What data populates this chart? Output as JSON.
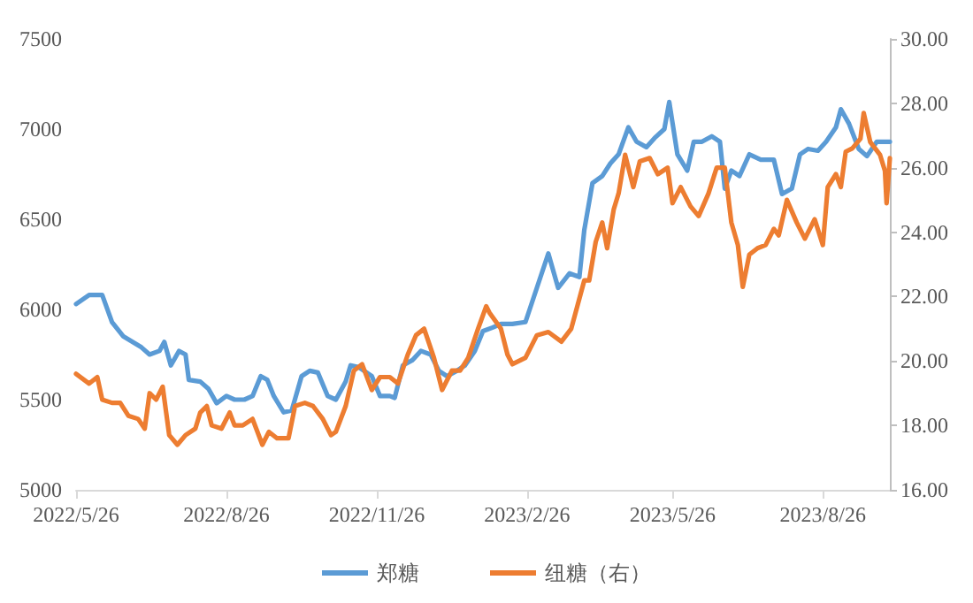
{
  "chart_data": {
    "type": "line",
    "xlim": [
      "2022-05-26",
      "2023-10-06"
    ],
    "xticks": [
      {
        "value": "2022-05-26",
        "label": "2022/5/26"
      },
      {
        "value": "2022-08-26",
        "label": "2022/8/26"
      },
      {
        "value": "2022-11-26",
        "label": "2022/11/26"
      },
      {
        "value": "2023-02-26",
        "label": "2023/2/26"
      },
      {
        "value": "2023-05-26",
        "label": "2023/5/26"
      },
      {
        "value": "2023-08-26",
        "label": "2023/8/26"
      }
    ],
    "ylim": [
      5000,
      7500
    ],
    "yticks": [
      5000,
      5500,
      6000,
      6500,
      7000,
      7500
    ],
    "y2lim": [
      16,
      30
    ],
    "y2ticks": [
      {
        "value": 16,
        "label": "16.00"
      },
      {
        "value": 18,
        "label": "18.00"
      },
      {
        "value": 20,
        "label": "20.00"
      },
      {
        "value": 22,
        "label": "22.00"
      },
      {
        "value": 24,
        "label": "24.00"
      },
      {
        "value": 26,
        "label": "26.00"
      },
      {
        "value": 28,
        "label": "28.00"
      },
      {
        "value": 30,
        "label": "30.00"
      }
    ],
    "grid": false,
    "legend": "bottom",
    "marker": "none",
    "line_style": "solid",
    "series": [
      {
        "name": "郑糖",
        "color": "#5b9bd5",
        "x": [
          "2022-05-26",
          "2022-06-03",
          "2022-06-11",
          "2022-06-17",
          "2022-06-24",
          "2022-07-05",
          "2022-07-10",
          "2022-07-16",
          "2022-07-19",
          "2022-07-23",
          "2022-07-28",
          "2022-08-01",
          "2022-08-03",
          "2022-08-10",
          "2022-08-15",
          "2022-08-20",
          "2022-08-26",
          "2022-08-31",
          "2022-09-06",
          "2022-09-11",
          "2022-09-16",
          "2022-09-20",
          "2022-09-24",
          "2022-09-30",
          "2022-10-05",
          "2022-10-11",
          "2022-10-16",
          "2022-10-21",
          "2022-10-27",
          "2022-11-01",
          "2022-11-07",
          "2022-11-10",
          "2022-11-15",
          "2022-11-23",
          "2022-11-28",
          "2022-12-04",
          "2022-12-07",
          "2022-12-12",
          "2022-12-18",
          "2022-12-23",
          "2022-12-29",
          "2023-01-03",
          "2023-01-08",
          "2023-01-14",
          "2023-01-19",
          "2023-01-25",
          "2023-01-30",
          "2023-02-05",
          "2023-02-10",
          "2023-02-17",
          "2023-02-25",
          "2023-03-04",
          "2023-03-11",
          "2023-03-17",
          "2023-03-24",
          "2023-03-30",
          "2023-04-02",
          "2023-04-07",
          "2023-04-13",
          "2023-04-18",
          "2023-04-23",
          "2023-04-29",
          "2023-05-04",
          "2023-05-10",
          "2023-05-15",
          "2023-05-21",
          "2023-05-24",
          "2023-05-29",
          "2023-06-04",
          "2023-06-08",
          "2023-06-13",
          "2023-06-19",
          "2023-06-24",
          "2023-06-27",
          "2023-07-01",
          "2023-07-06",
          "2023-07-12",
          "2023-07-19",
          "2023-07-27",
          "2023-08-01",
          "2023-08-07",
          "2023-08-12",
          "2023-08-17",
          "2023-08-23",
          "2023-08-28",
          "2023-09-03",
          "2023-09-06",
          "2023-09-11",
          "2023-09-17",
          "2023-09-22",
          "2023-09-28",
          "2023-10-06"
        ],
        "values": [
          6030,
          6080,
          6080,
          5930,
          5850,
          5790,
          5750,
          5770,
          5820,
          5690,
          5770,
          5750,
          5610,
          5600,
          5560,
          5480,
          5520,
          5500,
          5500,
          5520,
          5630,
          5610,
          5520,
          5430,
          5440,
          5630,
          5660,
          5650,
          5520,
          5500,
          5600,
          5690,
          5680,
          5630,
          5520,
          5520,
          5510,
          5690,
          5720,
          5770,
          5750,
          5660,
          5630,
          5660,
          5690,
          5770,
          5880,
          5900,
          5920,
          5920,
          5930,
          6120,
          6310,
          6120,
          6200,
          6180,
          6440,
          6700,
          6740,
          6810,
          6860,
          7010,
          6930,
          6900,
          6950,
          7000,
          7150,
          6860,
          6770,
          6930,
          6930,
          6960,
          6930,
          6670,
          6770,
          6740,
          6860,
          6830,
          6830,
          6640,
          6670,
          6860,
          6890,
          6880,
          6930,
          7010,
          7110,
          7030,
          6890,
          6850,
          6930,
          6930
        ]
      },
      {
        "name": "纽糖（右）",
        "color": "#ed7d31",
        "axis": "y2",
        "x": [
          "2022-05-26",
          "2022-06-03",
          "2022-06-08",
          "2022-06-11",
          "2022-06-17",
          "2022-06-22",
          "2022-06-27",
          "2022-07-03",
          "2022-07-07",
          "2022-07-10",
          "2022-07-14",
          "2022-07-18",
          "2022-07-22",
          "2022-07-27",
          "2022-08-01",
          "2022-08-07",
          "2022-08-10",
          "2022-08-14",
          "2022-08-17",
          "2022-08-23",
          "2022-08-28",
          "2022-08-31",
          "2022-09-05",
          "2022-09-11",
          "2022-09-17",
          "2022-09-21",
          "2022-09-26",
          "2022-10-03",
          "2022-10-07",
          "2022-10-13",
          "2022-10-18",
          "2022-10-24",
          "2022-10-29",
          "2022-11-01",
          "2022-11-07",
          "2022-11-12",
          "2022-11-17",
          "2022-11-23",
          "2022-11-28",
          "2022-12-04",
          "2022-12-09",
          "2022-12-15",
          "2022-12-20",
          "2022-12-25",
          "2022-12-31",
          "2023-01-05",
          "2023-01-11",
          "2023-01-16",
          "2023-01-21",
          "2023-01-27",
          "2023-02-01",
          "2023-02-03",
          "2023-02-10",
          "2023-02-14",
          "2023-02-17",
          "2023-02-25",
          "2023-03-04",
          "2023-03-11",
          "2023-03-19",
          "2023-03-25",
          "2023-04-02",
          "2023-04-05",
          "2023-04-09",
          "2023-04-13",
          "2023-04-16",
          "2023-04-20",
          "2023-04-23",
          "2023-04-27",
          "2023-05-02",
          "2023-05-06",
          "2023-05-12",
          "2023-05-17",
          "2023-05-23",
          "2023-05-26",
          "2023-05-31",
          "2023-06-06",
          "2023-06-11",
          "2023-06-17",
          "2023-06-22",
          "2023-06-27",
          "2023-07-01",
          "2023-07-05",
          "2023-07-08",
          "2023-07-12",
          "2023-07-17",
          "2023-07-22",
          "2023-07-27",
          "2023-07-30",
          "2023-08-04",
          "2023-08-10",
          "2023-08-15",
          "2023-08-21",
          "2023-08-26",
          "2023-08-29",
          "2023-09-03",
          "2023-09-06",
          "2023-09-09",
          "2023-09-13",
          "2023-09-18",
          "2023-09-20",
          "2023-09-24",
          "2023-09-30",
          "2023-10-03",
          "2023-10-04",
          "2023-10-06"
        ],
        "values": [
          19.6,
          19.3,
          19.5,
          18.8,
          18.7,
          18.7,
          18.3,
          18.2,
          17.9,
          19.0,
          18.8,
          19.2,
          17.7,
          17.4,
          17.7,
          17.9,
          18.4,
          18.6,
          18.0,
          17.9,
          18.4,
          18.0,
          18.0,
          18.2,
          17.4,
          17.8,
          17.6,
          17.6,
          18.6,
          18.7,
          18.6,
          18.2,
          17.7,
          17.8,
          18.6,
          19.7,
          19.9,
          19.1,
          19.5,
          19.5,
          19.3,
          20.2,
          20.8,
          21.0,
          20.1,
          19.1,
          19.7,
          19.7,
          20.1,
          21.0,
          21.7,
          21.5,
          21.0,
          20.2,
          19.9,
          20.1,
          20.8,
          20.9,
          20.6,
          21.0,
          22.5,
          22.5,
          23.7,
          24.3,
          23.5,
          24.7,
          25.2,
          26.4,
          25.4,
          26.2,
          26.3,
          25.8,
          26.0,
          24.9,
          25.4,
          24.8,
          24.5,
          25.2,
          26.0,
          26.0,
          24.3,
          23.6,
          22.3,
          23.3,
          23.5,
          23.6,
          24.1,
          23.9,
          25.0,
          24.3,
          23.8,
          24.4,
          23.6,
          25.4,
          25.8,
          25.4,
          26.5,
          26.6,
          26.9,
          27.7,
          26.8,
          26.4,
          25.9,
          24.9,
          26.3
        ]
      }
    ]
  }
}
